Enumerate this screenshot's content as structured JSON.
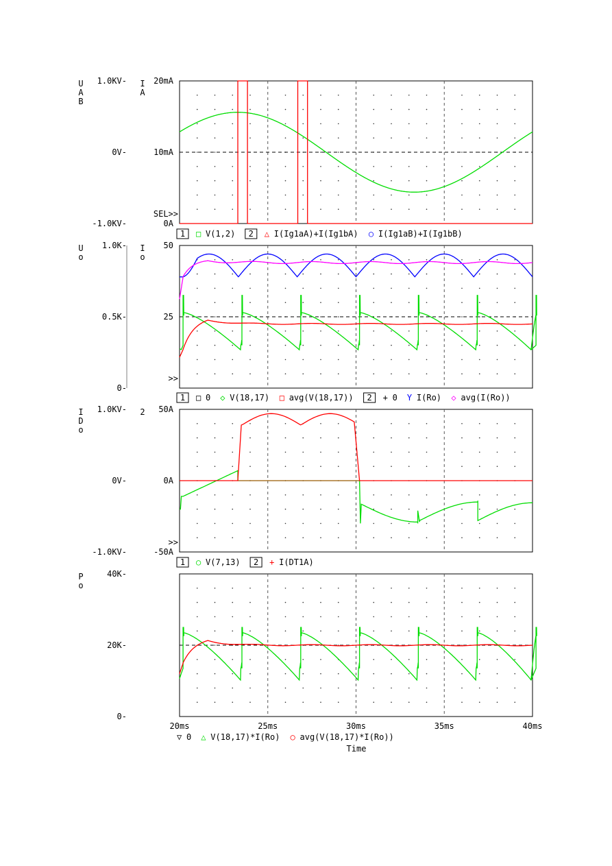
{
  "colors": {
    "green": "#00dd00",
    "red": "#ff0000",
    "blue": "#0000ff",
    "magenta": "#ff00ff",
    "black": "#000000"
  },
  "chart_data": [
    {
      "type": "line",
      "left_axis": {
        "label": [
          "U",
          "A",
          "B"
        ],
        "ticks": [
          "1.0KV",
          "0V",
          "-1.0KV"
        ],
        "ylim": [
          -1000,
          1000
        ]
      },
      "right_axis": {
        "label": [
          "I",
          "A"
        ],
        "ticks": [
          "20mA",
          "10mA",
          "0A"
        ],
        "ylim": [
          0,
          20
        ]
      },
      "selector": "SEL>>",
      "xlim": [
        20,
        40
      ],
      "legend": [
        {
          "box": "1",
          "symbol": "□",
          "text": "V(1,2)",
          "color": "#00dd00"
        },
        {
          "box": "2",
          "symbol": "△",
          "text": "I(Ig1aA)+I(Ig1bA)",
          "color": "#ff0000"
        },
        {
          "symbol": "○",
          "text": "I(Ig1aB)+I(Ig1bB)",
          "color": "#0000ff"
        }
      ],
      "series": [
        {
          "name": "V(1,2)",
          "shape": "sine",
          "axis": "left",
          "amplitude": 560,
          "period_ms": 20,
          "phase_ms": 23.3
        },
        {
          "name": "I(Ig1aA)+I(Ig1bA)",
          "shape": "pulses",
          "axis": "right",
          "pulses_ms": [
            [
              23.3,
              23.85
            ],
            [
              26.7,
              27.25
            ]
          ],
          "high": 20,
          "low": 0
        }
      ]
    },
    {
      "type": "line",
      "left_axis": {
        "label": [
          "U",
          "o"
        ],
        "ticks": [
          "1.0K",
          "0.5K",
          "0"
        ],
        "ylim": [
          0,
          1000
        ]
      },
      "right_axis": {
        "label": [
          "I",
          "o"
        ],
        "ticks": [
          "50",
          "25",
          ""
        ],
        "ylim": [
          0,
          50
        ]
      },
      "selector": ">>",
      "xlim": [
        20,
        40
      ],
      "legend": [
        {
          "box": "1",
          "symbol": "□",
          "text": "0",
          "color": "#000000"
        },
        {
          "symbol": "◇",
          "text": "V(18,17)",
          "color": "#00dd00"
        },
        {
          "symbol": "□",
          "text": "avg(V(18,17))",
          "color": "#ff0000"
        },
        {
          "box": "2",
          "symbol": "+",
          "text": "0",
          "color": "#000000"
        },
        {
          "symbol": "Y",
          "text": "I(Ro)",
          "color": "#0000ff"
        },
        {
          "symbol": "◇",
          "text": "avg(I(Ro))",
          "color": "#ff00ff"
        }
      ],
      "series": [
        {
          "name": "V(18,17)",
          "shape": "sawtooth",
          "axis": "left",
          "period_ms": 3.333,
          "first_ms": 20.2,
          "spike": 650,
          "top": 530,
          "drop_to": 300,
          "end": 290
        },
        {
          "name": "avg(V(18,17))",
          "shape": "avg",
          "axis": "left",
          "start": 270,
          "peak": 490,
          "settle": 450
        },
        {
          "name": "I(Ro)",
          "shape": "absine",
          "axis": "right",
          "min": 39,
          "max": 47,
          "start_ms": 20.2
        },
        {
          "name": "avg(I(Ro))",
          "shape": "avg",
          "axis": "right",
          "start": 39,
          "peak": 45,
          "settle": 44
        }
      ]
    },
    {
      "type": "line",
      "left_axis": {
        "label": [
          "I",
          "D",
          "o"
        ],
        "ticks": [
          "1.0KV",
          "0V",
          "-1.0KV"
        ],
        "ylim": [
          -1000,
          1000
        ]
      },
      "right_axis": {
        "label": [
          "2"
        ],
        "ticks": [
          "50A",
          "0A",
          "-50A"
        ],
        "ylim": [
          -50,
          50
        ]
      },
      "selector": ">>",
      "xlim": [
        20,
        40
      ],
      "legend": [
        {
          "box": "1",
          "symbol": "○",
          "text": "V(7,13)",
          "color": "#00dd00"
        },
        {
          "box": "2",
          "symbol": "+",
          "text": "I(DT1A)",
          "color": "#ff0000"
        }
      ],
      "series": [
        {
          "name": "V(7,13)",
          "shape": "thyristor_voltage",
          "axis": "left"
        },
        {
          "name": "I(DT1A)",
          "shape": "conduction",
          "axis": "right",
          "on_ms": [
            23.3,
            30.2
          ],
          "min": 39,
          "max": 47
        }
      ]
    },
    {
      "type": "line",
      "left_axis": {
        "label": [
          "P",
          "o"
        ],
        "ticks": [
          "40K",
          "20K",
          "0"
        ],
        "ylim": [
          0,
          40000
        ]
      },
      "selector": "",
      "xlim": [
        20,
        40
      ],
      "x_ticks": [
        "20ms",
        "25ms",
        "30ms",
        "35ms",
        "40ms"
      ],
      "xlabel": "Time",
      "legend": [
        {
          "symbol": "▽",
          "text": "0",
          "color": "#000000"
        },
        {
          "symbol": "△",
          "text": "V(18,17)*I(Ro)",
          "color": "#00dd00"
        },
        {
          "symbol": "○",
          "text": "avg(V(18,17)*I(Ro))",
          "color": "#ff0000"
        }
      ],
      "series": [
        {
          "name": "V(18,17)*I(Ro)",
          "shape": "sawtooth",
          "axis": "left",
          "period_ms": 3.333,
          "first_ms": 20.2,
          "spike": 25000,
          "top": 23500,
          "drop_to": 13500,
          "end": 11200
        },
        {
          "name": "avg(V(18,17)*I(Ro))",
          "shape": "avg",
          "axis": "left",
          "start": 15000,
          "peak": 21700,
          "settle": 20000
        }
      ]
    }
  ]
}
